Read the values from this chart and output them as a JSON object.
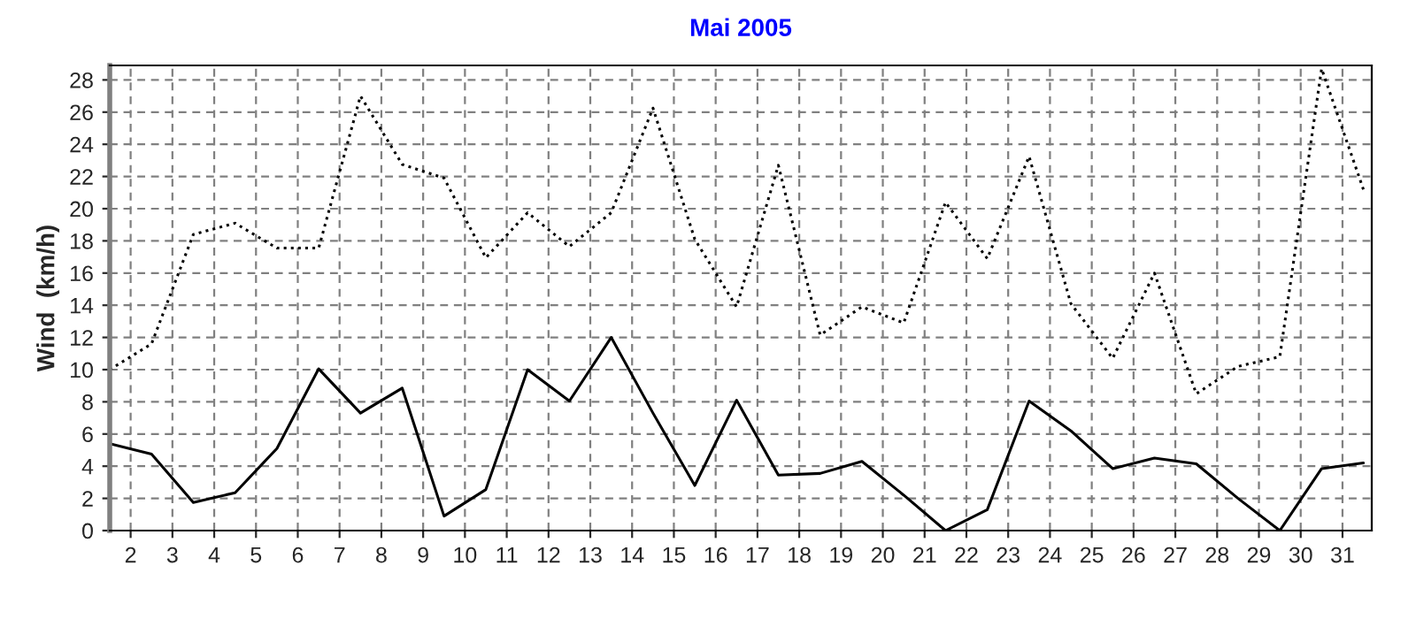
{
  "chart_data": {
    "type": "line",
    "title": "Mai 2005",
    "ylabel": "Wind  (km/h)",
    "x": [
      1.5,
      2.5,
      3.5,
      4.5,
      5.5,
      6.5,
      7.5,
      8.5,
      9.5,
      10.5,
      11.5,
      12.5,
      13.5,
      14.5,
      15.5,
      16.5,
      17.5,
      18.5,
      19.5,
      20.5,
      21.5,
      22.5,
      23.5,
      24.5,
      25.5,
      26.5,
      27.5,
      28.5,
      29.5,
      30.5,
      31.5
    ],
    "series": [
      {
        "color": "#000000",
        "line_style": "solid",
        "values": [
          5.4,
          4.75,
          1.75,
          2.35,
          5.1,
          10.05,
          7.3,
          8.85,
          0.9,
          2.55,
          10.0,
          8.05,
          12.0,
          7.3,
          2.8,
          8.1,
          3.45,
          3.55,
          4.3,
          2.2,
          0,
          1.3,
          8.05,
          6.2,
          3.85,
          4.5,
          4.15,
          2.0,
          0,
          3.85,
          4.2
        ]
      },
      {
        "color": "#000000",
        "line_style": "dotted",
        "values": [
          10.0,
          11.6,
          18.4,
          19.1,
          17.55,
          17.55,
          27.0,
          22.75,
          21.9,
          16.95,
          19.75,
          17.65,
          19.75,
          26.25,
          18.1,
          13.9,
          22.7,
          12.15,
          13.9,
          12.9,
          20.4,
          16.9,
          23.25,
          14.1,
          10.7,
          16.0,
          8.5,
          10.2,
          10.8,
          28.7,
          21.2
        ]
      }
    ],
    "xlim": [
      1.5,
      31.7
    ],
    "xticks": [
      2,
      3,
      4,
      5,
      6,
      7,
      8,
      9,
      10,
      11,
      12,
      13,
      14,
      15,
      16,
      17,
      18,
      19,
      20,
      21,
      22,
      23,
      24,
      25,
      26,
      27,
      28,
      29,
      30,
      31
    ],
    "ylim": [
      0,
      28.9
    ],
    "yticks": [
      0,
      2,
      4,
      6,
      8,
      10,
      12,
      14,
      16,
      18,
      20,
      22,
      24,
      26,
      28
    ],
    "grid": true,
    "legend": false
  }
}
